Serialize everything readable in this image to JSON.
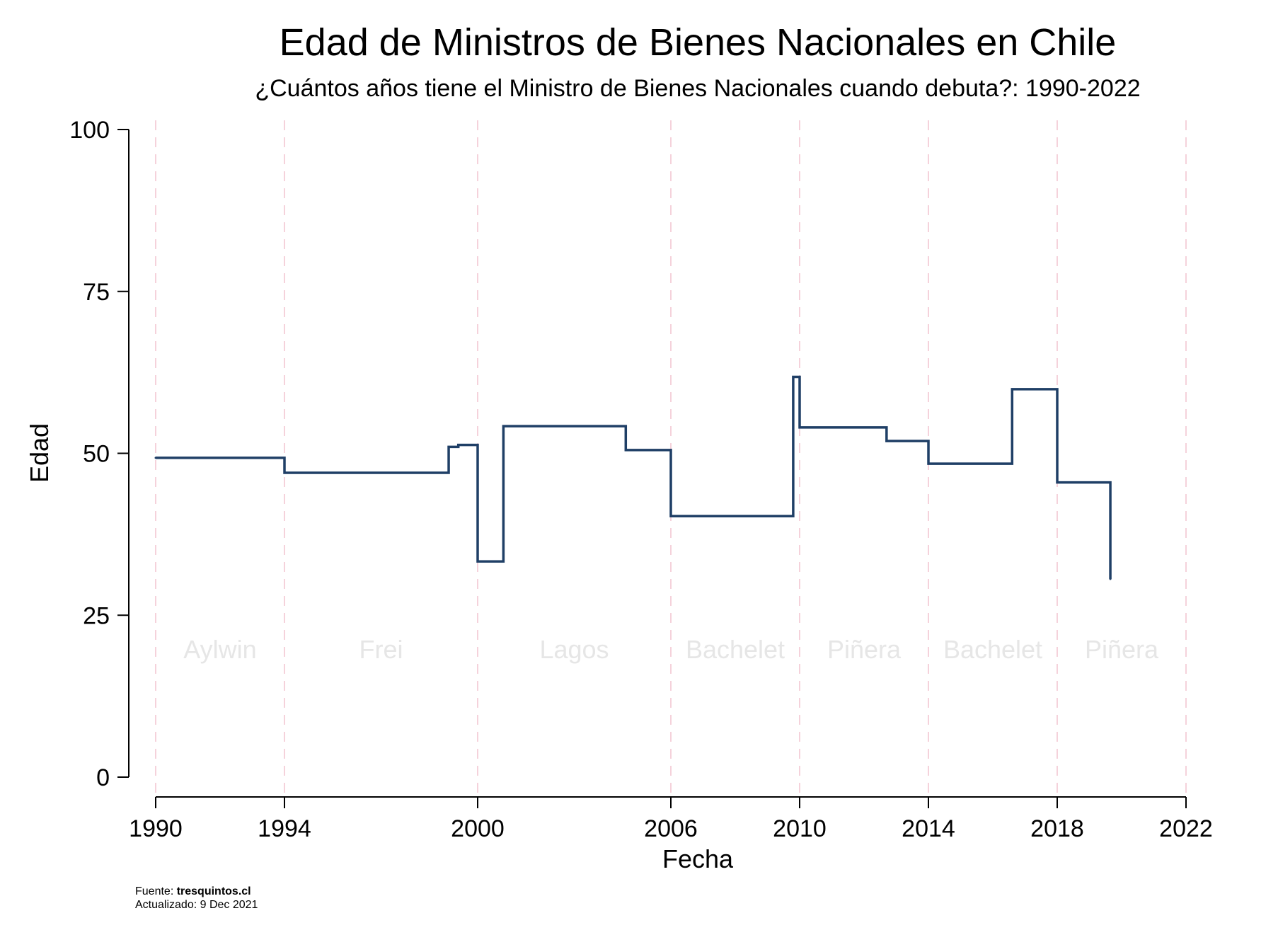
{
  "chart_data": {
    "type": "line",
    "step": true,
    "title": "Edad de Ministros de Bienes Nacionales en Chile",
    "subtitle": "¿Cuántos años tiene el Ministro de Bienes Nacionales cuando debuta?: 1990-2022",
    "xlabel": "Fecha",
    "ylabel": "Edad",
    "xlim": [
      1990,
      2022
    ],
    "ylim": [
      0,
      100
    ],
    "x_ticks": [
      "1990",
      "1994",
      "2000",
      "2006",
      "2010",
      "2014",
      "2018",
      "2022"
    ],
    "y_ticks": [
      "0",
      "25",
      "50",
      "75",
      "100"
    ],
    "grid": false,
    "line_color": "#1f3f66",
    "vline_color": "#f2c4cf",
    "era_color": "#e6e6e6",
    "eras": [
      {
        "label": "Aylwin",
        "start": 1990,
        "end": 1994
      },
      {
        "label": "Frei",
        "start": 1994,
        "end": 2000
      },
      {
        "label": "Lagos",
        "start": 2000,
        "end": 2006
      },
      {
        "label": "Bachelet",
        "start": 2006,
        "end": 2010
      },
      {
        "label": "Piñera",
        "start": 2010,
        "end": 2014
      },
      {
        "label": "Bachelet",
        "start": 2014,
        "end": 2018
      },
      {
        "label": "Piñera",
        "start": 2018,
        "end": 2022
      }
    ],
    "era_boundaries": [
      1990,
      1994,
      2000,
      2006,
      2010,
      2014,
      2018,
      2022
    ],
    "series": [
      {
        "points": [
          {
            "x": 1990.0,
            "y": 49.3
          },
          {
            "x": 1994.0,
            "y": 47.0
          },
          {
            "x": 1999.1,
            "y": 51.0
          },
          {
            "x": 1999.4,
            "y": 51.3
          },
          {
            "x": 2000.0,
            "y": 33.3
          },
          {
            "x": 2000.8,
            "y": 54.2
          },
          {
            "x": 2004.6,
            "y": 50.5
          },
          {
            "x": 2006.0,
            "y": 40.3
          },
          {
            "x": 2009.8,
            "y": 61.8
          },
          {
            "x": 2010.0,
            "y": 54.0
          },
          {
            "x": 2012.7,
            "y": 51.9
          },
          {
            "x": 2014.0,
            "y": 48.4
          },
          {
            "x": 2016.6,
            "y": 59.9
          },
          {
            "x": 2018.0,
            "y": 45.5
          },
          {
            "x": 2019.65,
            "y": 30.6
          }
        ]
      }
    ]
  },
  "footer": {
    "source_label": "Fuente: ",
    "source_value": "tresquintos.cl",
    "updated": "Actualizado:  9 Dec 2021"
  }
}
